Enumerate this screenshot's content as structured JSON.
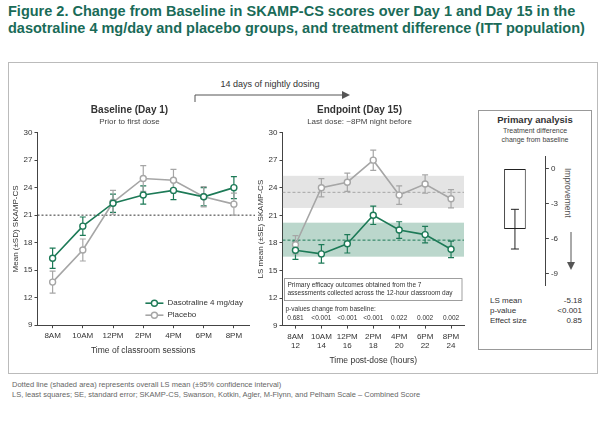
{
  "title": "Figure 2. Change from Baseline in SKAMP-CS scores over Day 1 and Day 15 in the dasotraline 4 mg/day and placebo groups, and treatment difference (ITT population)",
  "dosing_label": "14 days of nightly dosing",
  "chart_data": [
    {
      "type": "line",
      "title": "Baseline (Day 1)",
      "subtitle": "Prior to first dose",
      "x_label": "Time of classroom sessions",
      "y_label": "Mean (±SD) SKAMP-CS",
      "categories": [
        "8AM",
        "10AM",
        "12PM",
        "2PM",
        "4PM",
        "6PM",
        "8PM"
      ],
      "series": [
        {
          "name": "Dasotraline 4 mg/day",
          "color": "#1d7a57",
          "marker": "circle",
          "values": [
            16.3,
            19.8,
            22.3,
            23.2,
            23.7,
            23.0,
            24.0
          ],
          "error": [
            1.1,
            1.0,
            1.0,
            1.0,
            1.0,
            1.0,
            1.2
          ]
        },
        {
          "name": "Placebo",
          "color": "#a6a6a6",
          "marker": "circle",
          "values": [
            13.7,
            17.2,
            22.4,
            25.0,
            24.8,
            23.0,
            22.2
          ],
          "error": [
            1.2,
            1.2,
            1.3,
            1.4,
            1.2,
            1.1,
            1.2
          ]
        }
      ],
      "ylim": [
        9,
        30
      ],
      "yticks": [
        9,
        12,
        15,
        18,
        21,
        24,
        27,
        30
      ],
      "grid": false,
      "legend": "bottom-right",
      "reference_line": 21
    },
    {
      "type": "line",
      "title": "Endpoint (Day 15)",
      "subtitle": "Last dose: ~8PM night before",
      "x_label": "Time post-dose (hours)",
      "y_label": "LS mean (±SE) SKAMP-CS",
      "categories": [
        "8AM",
        "10AM",
        "12PM",
        "2PM",
        "4PM",
        "6PM",
        "8PM"
      ],
      "hours_post_dose": [
        12,
        14,
        16,
        18,
        20,
        22,
        24
      ],
      "series": [
        {
          "name": "Dasotraline 4 mg/day",
          "color": "#1d7a57",
          "marker": "circle",
          "values": [
            17.2,
            16.8,
            17.9,
            21.0,
            19.4,
            18.9,
            17.3
          ],
          "error": [
            1.0,
            1.0,
            1.0,
            1.0,
            0.9,
            0.9,
            0.9
          ]
        },
        {
          "name": "Placebo",
          "color": "#a6a6a6",
          "marker": "circle",
          "values": [
            17.8,
            24.0,
            24.6,
            27.0,
            23.2,
            24.4,
            22.8
          ],
          "error": [
            1.0,
            1.0,
            1.0,
            1.1,
            1.0,
            1.0,
            1.0
          ]
        }
      ],
      "ls_means": [
        {
          "series": "Dasotraline 4 mg/day",
          "mean": 18.3,
          "ci": [
            16.5,
            20.2
          ]
        },
        {
          "series": "Placebo",
          "mean": 23.5,
          "ci": [
            21.8,
            25.3
          ]
        }
      ],
      "annotation": "Primary efficacy outcomes obtained from the 7 assessments collected across the 12-hour classroom day",
      "p_values_label": "p-values change from baseline:",
      "p_values": [
        "0.681",
        "<0.001",
        "<0.001",
        "<0.001",
        "0.022",
        "0.002",
        "0.002"
      ],
      "ylim": [
        9,
        30
      ],
      "yticks": [
        9,
        12,
        15,
        18,
        21,
        24,
        27,
        30
      ],
      "grid": false
    },
    {
      "type": "bar",
      "title": "Primary analysis",
      "subtitle": "Treatment difference change from baseline",
      "y_label": "Improvement",
      "categories": [
        null
      ],
      "values": [
        -5.18
      ],
      "ci": [
        [
          -6.9,
          -3.5
        ]
      ],
      "color": "#ffffff",
      "ylim": [
        -10,
        1
      ],
      "yticks": [
        0,
        -3,
        -6,
        -9
      ],
      "grid": false,
      "stats": [
        {
          "label": "LS mean",
          "value": -5.18
        },
        {
          "label": "p-value",
          "value": "<0.001"
        },
        {
          "label": "Effect size",
          "value": 0.85
        }
      ]
    }
  ],
  "footnotes": [
    "Dotted line (shaded area) represents overall LS mean (±95% confidence interval)",
    "LS, least squares; SE, standard error; SKAMP-CS, Swanson, Kotkin, Agler, M-Flynn, and Pelham Scale – Combined Score"
  ]
}
